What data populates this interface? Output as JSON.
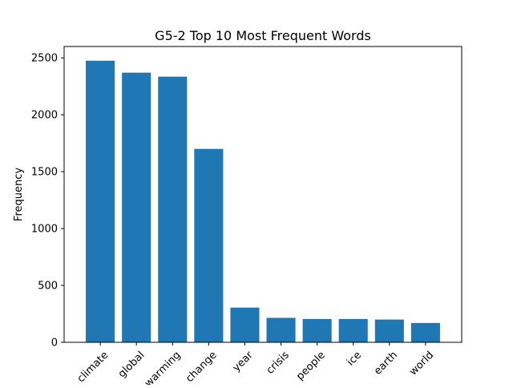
{
  "chart_data": {
    "type": "bar",
    "title": "G5-2 Top 10 Most Frequent Words",
    "xlabel": "",
    "ylabel": "Frequency",
    "categories": [
      "climate",
      "global",
      "warming",
      "change",
      "year",
      "crisis",
      "people",
      "ice",
      "earth",
      "world"
    ],
    "values": [
      2475,
      2370,
      2335,
      1700,
      305,
      215,
      205,
      205,
      200,
      170
    ],
    "ylim": [
      0,
      2600
    ],
    "yticks": [
      "0",
      "500",
      "1000",
      "1500",
      "2000",
      "2500"
    ],
    "bar_color": "#1f77b4",
    "grid": false,
    "legend": "none"
  }
}
